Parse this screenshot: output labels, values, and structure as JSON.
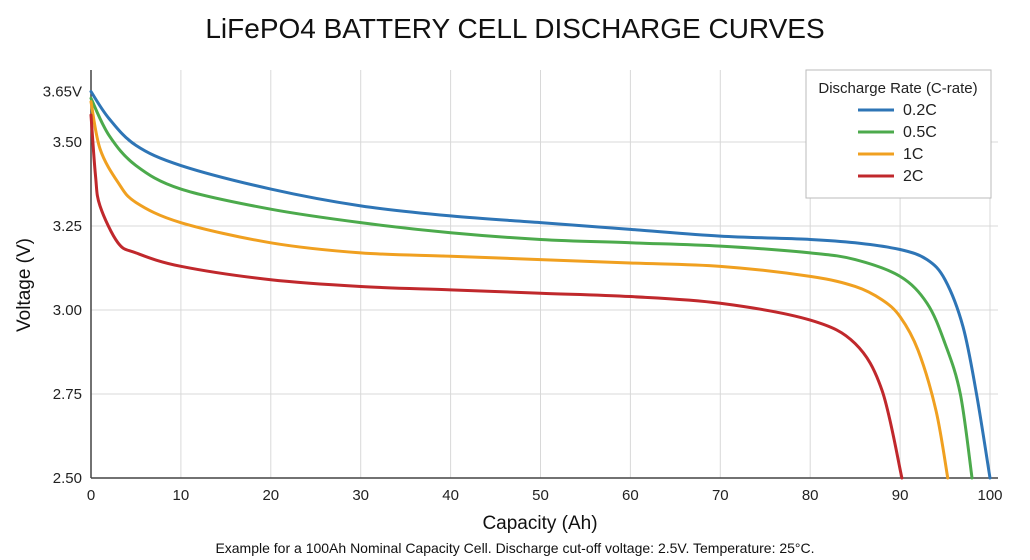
{
  "chart_data": {
    "type": "line",
    "title": "LiFePO4 BATTERY CELL DISCHARGE CURVES",
    "xlabel": "Capacity (Ah)",
    "ylabel": "Voltage (V)",
    "footnote": "Example for a 100Ah Nominal Capacity Cell. Discharge cut-off voltage: 2.5V. Temperature: 25°C.",
    "xlim": [
      0,
      100
    ],
    "ylim": [
      2.5,
      3.65
    ],
    "x_ticks": [
      "0",
      "10",
      "20",
      "30",
      "40",
      "50",
      "60",
      "70",
      "80",
      "90",
      "100"
    ],
    "y_ticks": [
      {
        "value": 2.5,
        "label": "2.50"
      },
      {
        "value": 2.75,
        "label": "2.75"
      },
      {
        "value": 3.0,
        "label": "3.00"
      },
      {
        "value": 3.25,
        "label": "3.25"
      },
      {
        "value": 3.5,
        "label": "3.50"
      },
      {
        "value": 3.65,
        "label": "3.65V"
      }
    ],
    "grid": true,
    "legend": {
      "title": "Discharge Rate (C-rate)",
      "placement": "top-right"
    },
    "series": [
      {
        "name": "0.2C",
        "color": "#2e75b6",
        "points": [
          [
            0,
            3.65
          ],
          [
            2,
            3.57
          ],
          [
            5,
            3.49
          ],
          [
            10,
            3.43
          ],
          [
            20,
            3.36
          ],
          [
            30,
            3.31
          ],
          [
            40,
            3.28
          ],
          [
            50,
            3.26
          ],
          [
            60,
            3.24
          ],
          [
            70,
            3.22
          ],
          [
            80,
            3.21
          ],
          [
            85,
            3.2
          ],
          [
            90,
            3.18
          ],
          [
            93,
            3.15
          ],
          [
            95,
            3.09
          ],
          [
            97,
            2.95
          ],
          [
            98.5,
            2.75
          ],
          [
            100,
            2.5
          ]
        ]
      },
      {
        "name": "0.5C",
        "color": "#4caa4c",
        "points": [
          [
            0,
            3.63
          ],
          [
            2,
            3.52
          ],
          [
            5,
            3.43
          ],
          [
            10,
            3.36
          ],
          [
            20,
            3.3
          ],
          [
            30,
            3.26
          ],
          [
            40,
            3.23
          ],
          [
            50,
            3.21
          ],
          [
            60,
            3.2
          ],
          [
            70,
            3.19
          ],
          [
            80,
            3.17
          ],
          [
            85,
            3.15
          ],
          [
            90,
            3.1
          ],
          [
            93,
            3.02
          ],
          [
            95,
            2.9
          ],
          [
            96.7,
            2.75
          ],
          [
            98,
            2.5
          ]
        ]
      },
      {
        "name": "1C",
        "color": "#f0a020",
        "points": [
          [
            0,
            3.62
          ],
          [
            1,
            3.48
          ],
          [
            3,
            3.38
          ],
          [
            5,
            3.32
          ],
          [
            10,
            3.26
          ],
          [
            20,
            3.2
          ],
          [
            30,
            3.17
          ],
          [
            40,
            3.16
          ],
          [
            50,
            3.15
          ],
          [
            60,
            3.14
          ],
          [
            70,
            3.13
          ],
          [
            80,
            3.1
          ],
          [
            85,
            3.07
          ],
          [
            88,
            3.03
          ],
          [
            90,
            2.98
          ],
          [
            92,
            2.88
          ],
          [
            94,
            2.7
          ],
          [
            95.3,
            2.5
          ]
        ]
      },
      {
        "name": "2C",
        "color": "#c0282c",
        "points": [
          [
            0,
            3.58
          ],
          [
            0.5,
            3.4
          ],
          [
            1,
            3.31
          ],
          [
            3,
            3.2
          ],
          [
            5,
            3.17
          ],
          [
            10,
            3.13
          ],
          [
            20,
            3.09
          ],
          [
            30,
            3.07
          ],
          [
            40,
            3.06
          ],
          [
            50,
            3.05
          ],
          [
            60,
            3.04
          ],
          [
            70,
            3.02
          ],
          [
            80,
            2.97
          ],
          [
            85,
            2.9
          ],
          [
            88,
            2.76
          ],
          [
            90.2,
            2.5
          ]
        ]
      }
    ]
  }
}
